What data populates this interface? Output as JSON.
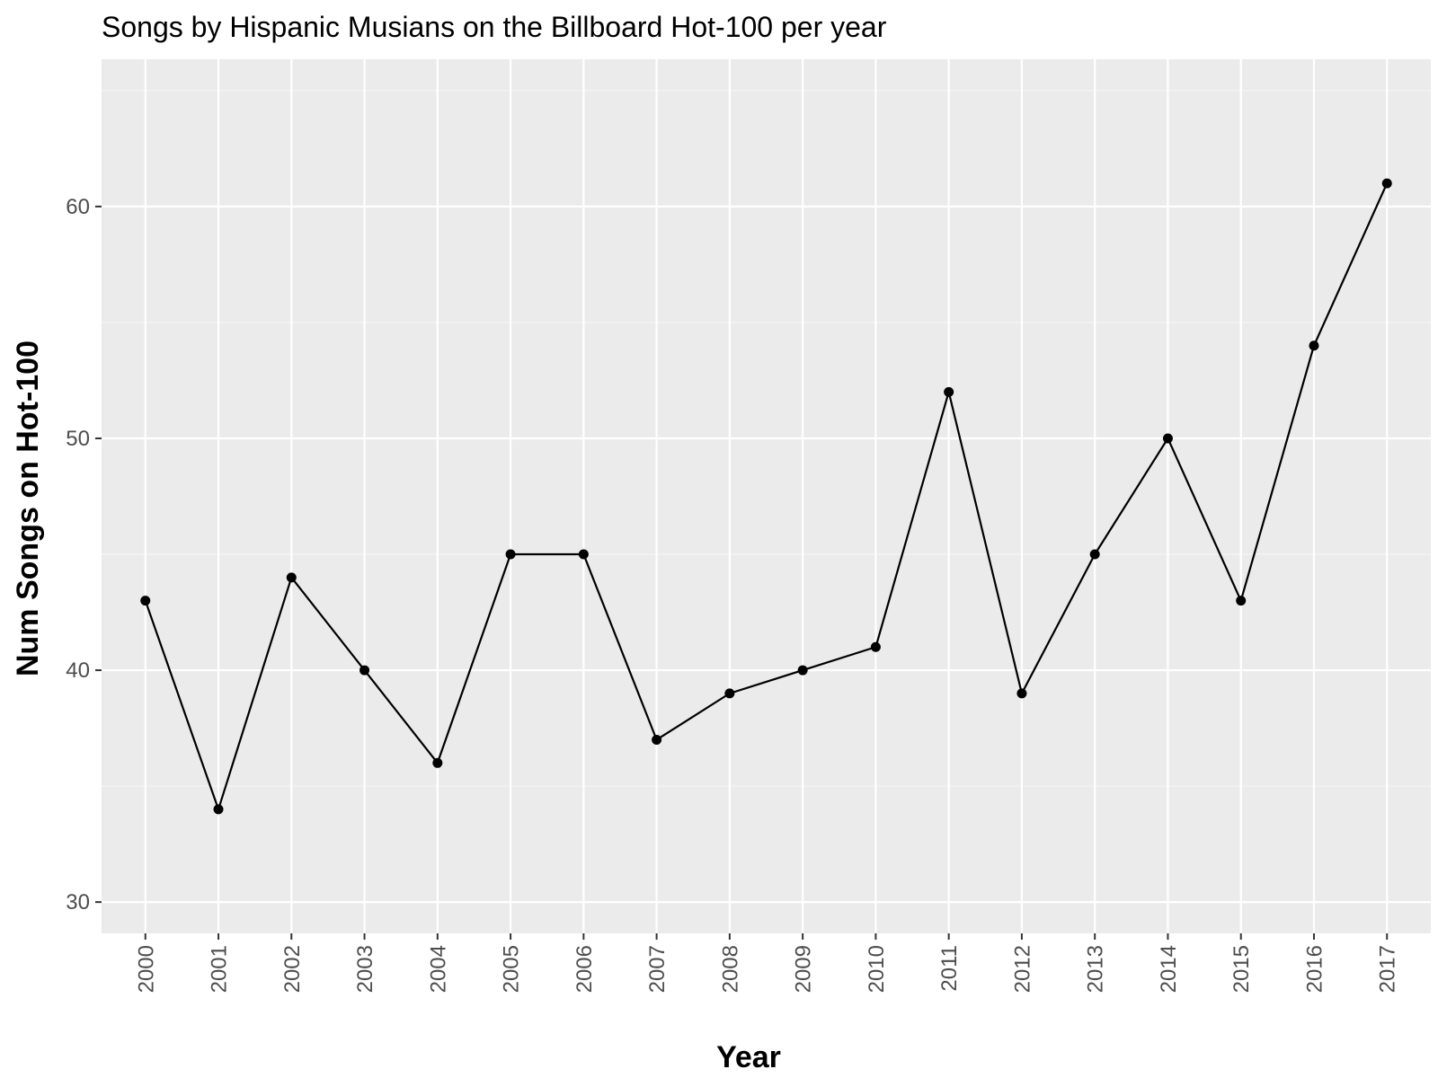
{
  "colors": {
    "panel_background": "#EBEBEB",
    "major_grid": "#FFFFFF",
    "minor_grid": "#F5F5F5",
    "tick_mark": "#333333",
    "tick_label": "#4D4D4D",
    "series_line": "#000000",
    "series_point": "#000000"
  },
  "chart_data": {
    "type": "line",
    "title": "Songs by Hispanic Musians on the Billboard Hot-100 per year",
    "xlabel": "Year",
    "ylabel": "Num Songs on Hot-100",
    "categories": [
      "2000",
      "2001",
      "2002",
      "2003",
      "2004",
      "2005",
      "2006",
      "2007",
      "2008",
      "2009",
      "2010",
      "2011",
      "2012",
      "2013",
      "2014",
      "2015",
      "2016",
      "2017"
    ],
    "series": [
      {
        "name": "Num Songs on Hot-100",
        "values": [
          43,
          34,
          44,
          40,
          36,
          45,
          45,
          37,
          39,
          40,
          41,
          52,
          39,
          45,
          50,
          43,
          54,
          61
        ]
      }
    ],
    "ylim": [
      28.65,
      66.35
    ],
    "yticks": [
      30,
      40,
      50,
      60
    ],
    "y_minor_ticks": [
      35,
      45,
      55,
      65
    ],
    "x_tick_rotation": "vertical",
    "grid": true,
    "legend": "none"
  }
}
